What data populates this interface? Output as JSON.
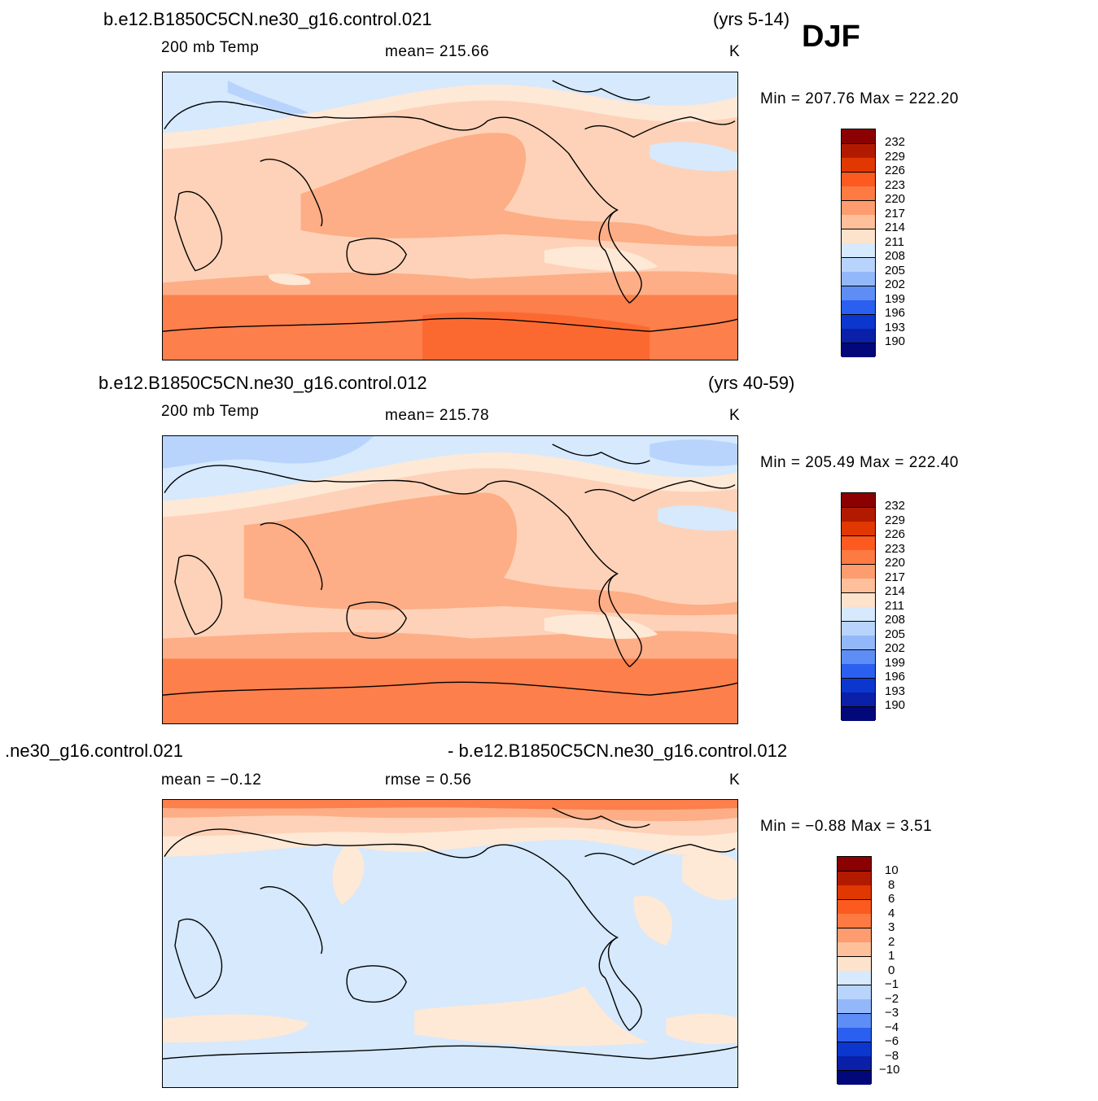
{
  "season": "DJF",
  "panels": [
    {
      "case_name": "b.e12.B1850C5CN.ne30_g16.control.021",
      "years": "(yrs 5-14)",
      "variable": "200 mb Temp",
      "stat_text": "mean=  215.66",
      "units": "K",
      "minmax": "Min  =  207.76  Max  =  222.20",
      "levels": [
        "232",
        "229",
        "226",
        "223",
        "220",
        "217",
        "214",
        "211",
        "208",
        "205",
        "202",
        "199",
        "196",
        "193",
        "190"
      ]
    },
    {
      "case_name": "b.e12.B1850C5CN.ne30_g16.control.012",
      "years": "(yrs 40-59)",
      "variable": "200 mb Temp",
      "stat_text": "mean=  215.78",
      "units": "K",
      "minmax": "Min  =  205.49  Max  =  222.40",
      "levels": [
        "232",
        "229",
        "226",
        "223",
        "220",
        "217",
        "214",
        "211",
        "208",
        "205",
        "202",
        "199",
        "196",
        "193",
        "190"
      ]
    },
    {
      "case_left": ".ne30_g16.control.021",
      "case_right": "- b.e12.B1850C5CN.ne30_g16.control.012",
      "mean_text": "mean  =    −0.12",
      "rmse_text": "rmse  =      0.56",
      "units": "K",
      "minmax": "Min  =     −0.88  Max  =        3.51",
      "levels": [
        "10",
        "8",
        "6",
        "4",
        "3",
        "2",
        "1",
        "0",
        "−1",
        "−2",
        "−3",
        "−4",
        "−6",
        "−8",
        "−10"
      ]
    }
  ],
  "colors": {
    "colorbar": [
      "#8b0000",
      "#b21a00",
      "#e03800",
      "#fc5a1e",
      "#fd7a42",
      "#fd9c6e",
      "#febf9b",
      "#fee3cc",
      "#d6e9fd",
      "#b8d4fc",
      "#93b8f9",
      "#5e8ef5",
      "#2b5ff0",
      "#0c37cf",
      "#0a20a8",
      "#02087a"
    ],
    "warm": "#fed2b8",
    "warmer": "#fdae86",
    "warmest": "#fc7f4c",
    "pale": "#fee8d6",
    "cool": "#d6e9fd",
    "cooler": "#b8d4fc"
  }
}
